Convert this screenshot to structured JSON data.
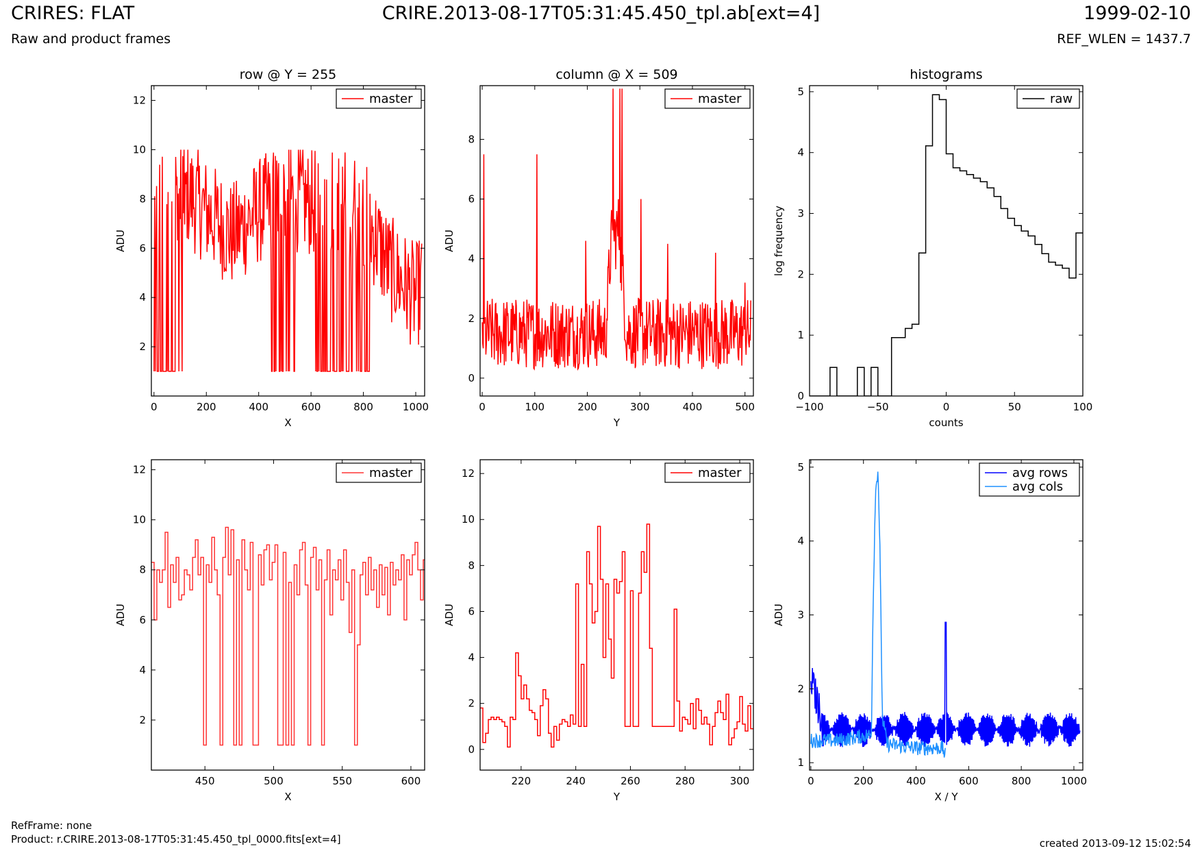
{
  "header": {
    "title": "CRIRES: FLAT",
    "subtitle": "Raw and product frames",
    "file": "CRIRE.2013-08-17T05:31:45.450_tpl.ab[ext=4]",
    "date": "1999-02-10",
    "ref_wlen": "REF_WLEN = 1437.7"
  },
  "footer": {
    "ref_frame": "RefFrame: none",
    "product": "Product: r.CRIRE.2013-08-17T05:31:45.450_tpl_0000.fits[ext=4]",
    "created": "created 2013-09-12 15:02:54"
  },
  "colors": {
    "master": "#ff0000",
    "master_zoom": "#ff3333",
    "raw": "#000000",
    "avg_rows": "#0000ff",
    "avg_cols": "#1e90ff"
  },
  "chart_data": [
    {
      "type": "line",
      "title": "row @ Y = 255",
      "xlabel": "X",
      "ylabel": "ADU",
      "xlim": [
        -10,
        1034
      ],
      "ylim": [
        0,
        12.6
      ],
      "xticks": [
        0,
        200,
        400,
        600,
        800,
        1000
      ],
      "yticks": [
        2,
        4,
        6,
        8,
        10,
        12
      ],
      "legend": "top-right",
      "series": [
        {
          "name": "master",
          "color": "#ff0000",
          "style": "noise",
          "n": 420,
          "x_range": [
            0,
            1023
          ],
          "profile_x": [
            0,
            60,
            100,
            200,
            300,
            400,
            500,
            600,
            700,
            800,
            900,
            1000,
            1023
          ],
          "profile_y": [
            7.5,
            8.2,
            8.5,
            7.5,
            6.5,
            7.5,
            8.2,
            7.8,
            8.0,
            7.5,
            5.2,
            4.0,
            4.5
          ],
          "spread": 2.2,
          "min": 1,
          "max": 10,
          "dropouts": [
            [
              0,
              70,
              0.7
            ],
            [
              70,
              120,
              0.45
            ],
            [
              440,
              540,
              0.35
            ],
            [
              610,
              830,
              0.5
            ]
          ],
          "drop_value": 1
        }
      ]
    },
    {
      "type": "line",
      "title": "column @ X = 509",
      "xlabel": "Y",
      "ylabel": "ADU",
      "xlim": [
        -4,
        516
      ],
      "ylim": [
        -0.6,
        9.8
      ],
      "xticks": [
        0,
        100,
        200,
        300,
        400,
        500
      ],
      "yticks": [
        0,
        2,
        4,
        6,
        8
      ],
      "legend": "top-right",
      "series": [
        {
          "name": "master",
          "color": "#ff0000",
          "style": "noise",
          "n": 512,
          "x_range": [
            0,
            511
          ],
          "profile_x": [
            0,
            100,
            235,
            245,
            260,
            275,
            300,
            511
          ],
          "profile_y": [
            1.5,
            1.5,
            1.5,
            4.5,
            5.0,
            1.5,
            1.5,
            1.5
          ],
          "spread": 1.2,
          "min": 0.2,
          "max": 9.8,
          "spikes": [
            [
              3,
              7.5
            ],
            [
              104,
              7.5
            ],
            [
              197,
              4.6
            ],
            [
              249,
              9.7
            ],
            [
              262,
              9.7
            ],
            [
              266,
              9.7
            ],
            [
              302,
              6.0
            ],
            [
              353,
              4.5
            ],
            [
              444,
              4.2
            ],
            [
              500,
              3.2
            ]
          ]
        }
      ]
    },
    {
      "type": "line",
      "title": "histograms",
      "xlabel": "counts",
      "ylabel": "log frequency",
      "xlim": [
        -100,
        100
      ],
      "ylim": [
        0,
        5.1
      ],
      "xticks": [
        -100,
        -50,
        0,
        50,
        100
      ],
      "yticks": [
        0,
        1,
        2,
        3,
        4,
        5
      ],
      "legend": "top-right",
      "series": [
        {
          "name": "raw",
          "color": "#000000",
          "style": "steps",
          "x": [
            -100,
            -85,
            -80,
            -75,
            -70,
            -65,
            -60,
            -55,
            -50,
            -45,
            -40,
            -35,
            -30,
            -25,
            -20,
            -15,
            -10,
            -5,
            0,
            5,
            10,
            15,
            20,
            25,
            30,
            35,
            40,
            45,
            50,
            55,
            60,
            65,
            70,
            75,
            80,
            85,
            90,
            95,
            100
          ],
          "y": [
            0,
            0.47,
            0,
            0,
            0,
            0.47,
            0,
            0.47,
            0,
            0,
            0.96,
            0.96,
            1.11,
            1.18,
            2.35,
            4.11,
            4.95,
            4.87,
            3.98,
            3.75,
            3.7,
            3.64,
            3.58,
            3.52,
            3.42,
            3.28,
            3.08,
            2.92,
            2.8,
            2.71,
            2.63,
            2.49,
            2.34,
            2.2,
            2.15,
            2.1,
            1.94,
            2.68,
            2.68
          ]
        }
      ]
    },
    {
      "type": "line",
      "xlabel": "X",
      "ylabel": "ADU",
      "xlim": [
        411,
        610
      ],
      "ylim": [
        0,
        12.4
      ],
      "xticks": [
        450,
        500,
        550,
        600
      ],
      "yticks": [
        2,
        4,
        6,
        8,
        10,
        12
      ],
      "legend": "top-right",
      "series": [
        {
          "name": "master",
          "color": "#ff3333",
          "style": "steps",
          "x": [
            411,
            413,
            415,
            417,
            419,
            421,
            423,
            425,
            427,
            429,
            431,
            433,
            435,
            437,
            439,
            441,
            443,
            445,
            447,
            449,
            451,
            453,
            455,
            457,
            459,
            461,
            463,
            465,
            467,
            469,
            471,
            473,
            475,
            477,
            479,
            481,
            483,
            485,
            487,
            489,
            491,
            493,
            495,
            497,
            499,
            501,
            503,
            505,
            507,
            509,
            511,
            513,
            515,
            517,
            519,
            521,
            523,
            525,
            527,
            529,
            531,
            533,
            535,
            537,
            539,
            541,
            543,
            545,
            547,
            549,
            551,
            553,
            555,
            557,
            559,
            561,
            563,
            565,
            567,
            569,
            571,
            573,
            575,
            577,
            579,
            581,
            583,
            585,
            587,
            589,
            591,
            593,
            595,
            597,
            599,
            601,
            603,
            605,
            607,
            609
          ],
          "y": [
            8.3,
            6.0,
            8.0,
            7.5,
            8.0,
            9.5,
            6.5,
            8.2,
            7.5,
            8.5,
            6.8,
            7.0,
            8.0,
            7.8,
            7.2,
            8.5,
            9.2,
            7.8,
            8.5,
            1.0,
            8.2,
            7.5,
            9.3,
            8.0,
            7.0,
            1.0,
            8.5,
            9.7,
            7.8,
            9.6,
            1.0,
            8.4,
            1.0,
            9.2,
            8.0,
            7.2,
            9.1,
            1.0,
            1.0,
            8.6,
            7.4,
            8.8,
            9.0,
            7.6,
            8.3,
            9.0,
            1.0,
            1.0,
            8.7,
            1.0,
            7.5,
            1.0,
            8.2,
            7.0,
            8.8,
            9.1,
            7.4,
            1.0,
            8.5,
            8.9,
            7.2,
            8.4,
            1.0,
            7.6,
            8.8,
            6.2,
            8.0,
            7.6,
            8.4,
            6.8,
            8.8,
            7.5,
            5.5,
            8.0,
            1.0,
            5.0,
            7.8,
            8.3,
            7.0,
            8.5,
            7.2,
            8.0,
            6.5,
            8.2,
            7.0,
            8.1,
            6.2,
            8.3,
            7.4,
            8.0,
            7.6,
            8.6,
            6.0,
            8.4,
            7.8,
            8.6,
            9.1,
            8.0,
            6.8,
            8.4
          ]
        }
      ]
    },
    {
      "type": "line",
      "xlabel": "Y",
      "ylabel": "ADU",
      "xlim": [
        205,
        305
      ],
      "ylim": [
        -0.9,
        12.6
      ],
      "xticks": [
        220,
        240,
        260,
        280,
        300
      ],
      "yticks": [
        0,
        2,
        4,
        6,
        8,
        10,
        12
      ],
      "legend": "top-right",
      "series": [
        {
          "name": "master",
          "color": "#ff0000",
          "style": "steps",
          "x": [
            205,
            206,
            207,
            208,
            209,
            210,
            211,
            212,
            213,
            214,
            215,
            216,
            217,
            218,
            219,
            220,
            221,
            222,
            223,
            224,
            225,
            226,
            227,
            228,
            229,
            230,
            231,
            232,
            233,
            234,
            235,
            236,
            237,
            238,
            239,
            240,
            241,
            242,
            243,
            244,
            245,
            246,
            247,
            248,
            249,
            250,
            251,
            252,
            253,
            254,
            255,
            256,
            257,
            258,
            259,
            260,
            261,
            262,
            263,
            264,
            265,
            266,
            267,
            268,
            269,
            270,
            271,
            272,
            273,
            274,
            275,
            276,
            277,
            278,
            279,
            280,
            281,
            282,
            283,
            284,
            285,
            286,
            287,
            288,
            289,
            290,
            291,
            292,
            293,
            294,
            295,
            296,
            297,
            298,
            299,
            300,
            301,
            302,
            303,
            304
          ],
          "y": [
            1.8,
            0.3,
            0.7,
            1.3,
            1.4,
            1.3,
            1.4,
            1.3,
            1.2,
            1.0,
            0.1,
            1.4,
            1.3,
            4.2,
            3.2,
            2.2,
            2.8,
            2.2,
            1.7,
            1.6,
            1.3,
            0.6,
            1.9,
            2.6,
            2.2,
            0.7,
            0.1,
            1.0,
            0.4,
            1.1,
            1.3,
            1.2,
            1.0,
            1.5,
            1.1,
            7.2,
            1.0,
            3.7,
            1.0,
            8.6,
            7.2,
            5.5,
            6.0,
            9.7,
            7.4,
            4.0,
            7.2,
            4.8,
            3.1,
            7.4,
            6.8,
            7.3,
            8.6,
            1.0,
            1.0,
            6.9,
            1.0,
            1.0,
            6.8,
            8.6,
            7.7,
            9.8,
            4.4,
            1.0,
            1.0,
            1.0,
            1.0,
            1.0,
            1.0,
            1.0,
            1.0,
            6.1,
            2.1,
            0.8,
            1.4,
            1.3,
            1.1,
            2.0,
            0.9,
            2.2,
            1.7,
            1.1,
            1.4,
            1.1,
            0.2,
            1.0,
            1.6,
            2.1,
            1.6,
            1.3,
            2.4,
            0.2,
            0.5,
            0.9,
            1.2,
            2.3,
            1.1,
            0.8,
            1.9,
            0.9
          ]
        }
      ]
    },
    {
      "type": "line",
      "xlabel": "X / Y",
      "ylabel": "ADU",
      "xlim": [
        -5,
        1034
      ],
      "ylim": [
        0.9,
        5.1
      ],
      "xticks": [
        0,
        200,
        400,
        600,
        800,
        1000
      ],
      "yticks": [
        1,
        2,
        3,
        4,
        5
      ],
      "legend": "top-right",
      "series": [
        {
          "name": "avg rows",
          "color": "#0000ff",
          "style": "oscillation",
          "n": 520,
          "x_range": [
            0,
            1023
          ],
          "base": 1.45,
          "amplitude": 0.2,
          "period": 8,
          "start_x": [
            0,
            40
          ],
          "start_y": [
            2.15,
            1.6
          ],
          "spike": [
            512,
            2.9
          ]
        },
        {
          "name": "avg cols",
          "color": "#1e90ff",
          "style": "noise",
          "n": 260,
          "x_range": [
            0,
            511
          ],
          "profile_x": [
            0,
            100,
            230,
            236,
            245,
            255,
            262,
            272,
            290,
            400,
            500,
            511
          ],
          "profile_y": [
            1.3,
            1.3,
            1.38,
            3.0,
            4.6,
            5.0,
            4.0,
            1.6,
            1.25,
            1.2,
            1.2,
            1.1
          ],
          "spread": 0.1,
          "min": 1.02,
          "max": 5.1
        }
      ]
    }
  ]
}
